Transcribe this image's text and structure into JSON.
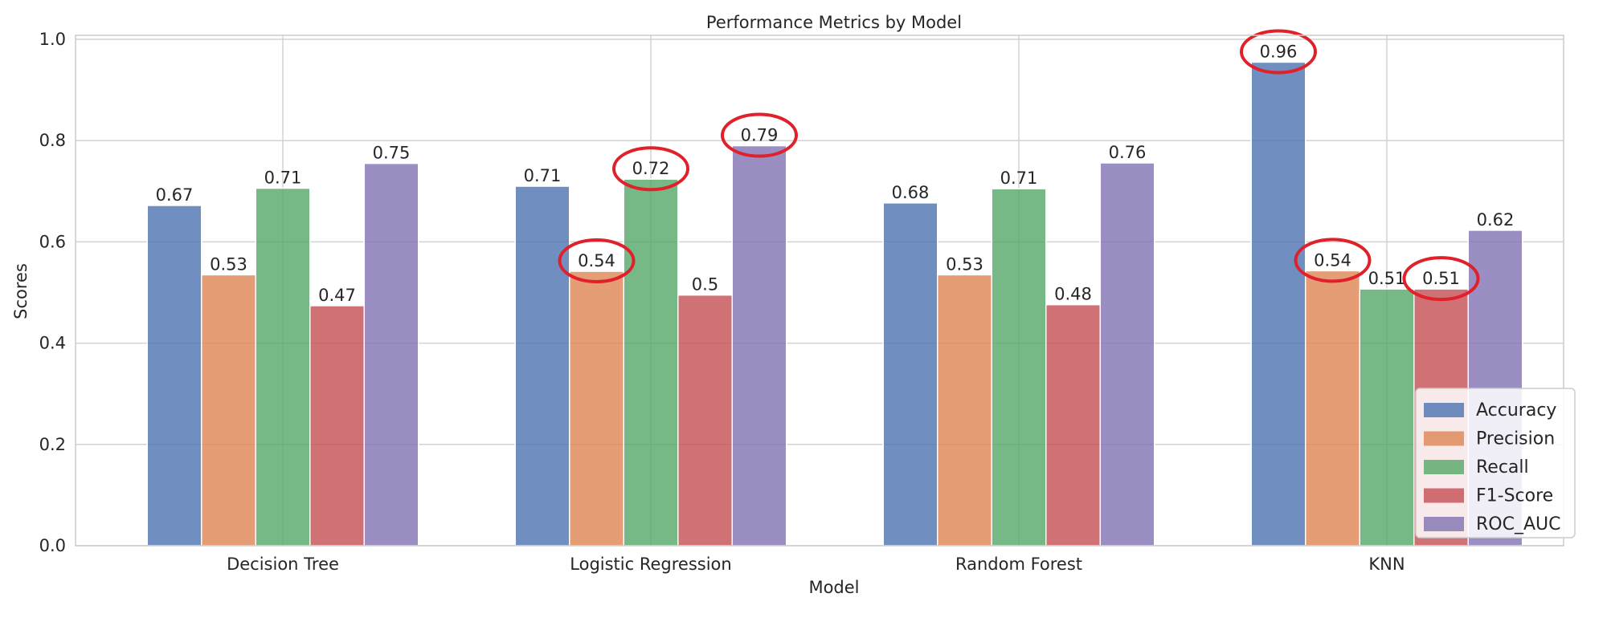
{
  "chart_data": {
    "type": "bar",
    "title": "Performance Metrics by Model",
    "xlabel": "Model",
    "ylabel": "Scores",
    "categories": [
      "Decision Tree",
      "Logistic Regression",
      "Random Forest",
      "KNN"
    ],
    "series": [
      {
        "name": "Accuracy",
        "color": "#4c72b0",
        "values": [
          0.672,
          0.71,
          0.677,
          0.955
        ],
        "labels": [
          "0.67",
          "0.71",
          "0.68",
          "0.96"
        ]
      },
      {
        "name": "Precision",
        "color": "#dd8452",
        "values": [
          0.535,
          0.542,
          0.535,
          0.543
        ],
        "labels": [
          "0.53",
          "0.54",
          "0.53",
          "0.54"
        ]
      },
      {
        "name": "Recall",
        "color": "#55a868",
        "values": [
          0.706,
          0.724,
          0.705,
          0.507
        ],
        "labels": [
          "0.71",
          "0.72",
          "0.71",
          "0.51"
        ]
      },
      {
        "name": "F1-Score",
        "color": "#c44e52",
        "values": [
          0.474,
          0.495,
          0.476,
          0.507
        ],
        "labels": [
          "0.47",
          "0.5",
          "0.48",
          "0.51"
        ]
      },
      {
        "name": "ROC_AUC",
        "color": "#8172b3",
        "values": [
          0.755,
          0.79,
          0.756,
          0.623
        ],
        "labels": [
          "0.75",
          "0.79",
          "0.76",
          "0.62"
        ]
      }
    ],
    "yticks": [
      "0.0",
      "0.2",
      "0.4",
      "0.6",
      "0.8",
      "1.0"
    ],
    "ylim": [
      0,
      1.0
    ],
    "grid": true,
    "legend_position": "lower-right",
    "highlights": [
      {
        "series": 1,
        "category": 1
      },
      {
        "series": 2,
        "category": 1
      },
      {
        "series": 4,
        "category": 1
      },
      {
        "series": 0,
        "category": 3
      },
      {
        "series": 1,
        "category": 3
      },
      {
        "series": 3,
        "category": 3
      }
    ],
    "highlight_color": "#e0202a"
  }
}
